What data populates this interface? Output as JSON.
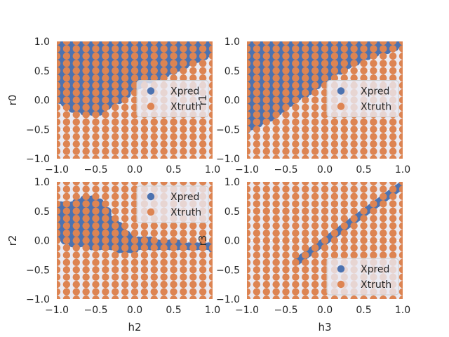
{
  "chart_data": [
    {
      "type": "scatter",
      "panel": "top-left",
      "xlabel": "",
      "ylabel": "r0",
      "xlim": [
        -1.0,
        1.0
      ],
      "ylim": [
        -1.0,
        1.0
      ],
      "xticks": [
        "−1.0",
        "−0.5",
        "0.0",
        "0.5",
        "1.0"
      ],
      "yticks": [
        "−1.0",
        "−0.5",
        "0.0",
        "0.5",
        "1.0"
      ],
      "grid": true,
      "legend": {
        "placement": "center-right",
        "entries": [
          "Xpred",
          "Xtruth"
        ]
      },
      "series": [
        {
          "name": "Xpred",
          "color": "#4c72b0",
          "region": {
            "kind": "above",
            "curve": [
              [
                -1.0,
                0.0
              ],
              [
                -0.8,
                -0.15
              ],
              [
                -0.6,
                -0.22
              ],
              [
                -0.45,
                -0.2
              ],
              [
                -0.3,
                -0.1
              ],
              [
                0.0,
                0.2
              ],
              [
                0.2,
                0.35
              ],
              [
                0.4,
                0.45
              ],
              [
                0.6,
                0.55
              ],
              [
                0.8,
                0.68
              ],
              [
                1.0,
                0.82
              ]
            ]
          }
        },
        {
          "name": "Xtruth",
          "color": "#dd8452",
          "grid_step": 0.125
        }
      ]
    },
    {
      "type": "scatter",
      "panel": "top-right",
      "xlabel": "",
      "ylabel": "r1",
      "xlim": [
        -1.0,
        1.0
      ],
      "ylim": [
        -1.0,
        1.0
      ],
      "xticks": [
        "−1.0",
        "−0.5",
        "0.0",
        "0.5",
        "1.0"
      ],
      "yticks": [
        "−1.0",
        "−0.5",
        "0.0",
        "0.5",
        "1.0"
      ],
      "grid": true,
      "legend": {
        "placement": "center-right",
        "entries": [
          "Xpred",
          "Xtruth"
        ]
      },
      "series": [
        {
          "name": "Xpred",
          "color": "#4c72b0",
          "region": {
            "kind": "above",
            "curve": [
              [
                -1.0,
                -0.5
              ],
              [
                -0.7,
                -0.3
              ],
              [
                -0.4,
                -0.05
              ],
              [
                -0.1,
                0.25
              ],
              [
                0.2,
                0.5
              ],
              [
                0.5,
                0.72
              ],
              [
                0.8,
                0.85
              ],
              [
                1.0,
                0.92
              ]
            ]
          }
        },
        {
          "name": "Xtruth",
          "color": "#dd8452",
          "grid_step": 0.125
        }
      ]
    },
    {
      "type": "scatter",
      "panel": "bottom-left",
      "xlabel": "h2",
      "ylabel": "r2",
      "xlim": [
        -1.0,
        1.0
      ],
      "ylim": [
        -1.0,
        1.0
      ],
      "xticks": [
        "−1.0",
        "−0.5",
        "0.0",
        "0.5",
        "1.0"
      ],
      "yticks": [
        "−1.0",
        "−0.5",
        "0.0",
        "0.5",
        "1.0"
      ],
      "grid": true,
      "legend": {
        "placement": "upper-right",
        "entries": [
          "Xpred",
          "Xtruth"
        ]
      },
      "series": [
        {
          "name": "Xpred",
          "color": "#4c72b0",
          "region": {
            "kind": "band",
            "upper": [
              [
                -1.0,
                0.6
              ],
              [
                -0.8,
                0.65
              ],
              [
                -0.6,
                0.75
              ],
              [
                -0.4,
                0.62
              ],
              [
                -0.3,
                0.4
              ],
              [
                -0.15,
                0.2
              ],
              [
                0.0,
                0.05
              ],
              [
                0.4,
                -0.03
              ],
              [
                0.7,
                -0.06
              ],
              [
                1.0,
                -0.08
              ]
            ],
            "lower": [
              [
                -1.0,
                0.02
              ],
              [
                -0.8,
                -0.05
              ],
              [
                -0.5,
                -0.12
              ],
              [
                -0.2,
                -0.15
              ],
              [
                0.0,
                -0.15
              ],
              [
                0.4,
                -0.14
              ],
              [
                0.7,
                -0.14
              ],
              [
                1.0,
                -0.15
              ]
            ]
          }
        },
        {
          "name": "Xtruth",
          "color": "#dd8452",
          "grid_step": 0.125
        }
      ]
    },
    {
      "type": "scatter",
      "panel": "bottom-right",
      "xlabel": "h3",
      "ylabel": "r3",
      "xlim": [
        -1.0,
        1.0
      ],
      "ylim": [
        -1.0,
        1.0
      ],
      "xticks": [
        "−1.0",
        "−0.5",
        "0.0",
        "0.5",
        "1.0"
      ],
      "yticks": [
        "−1.0",
        "−0.5",
        "0.0",
        "0.5",
        "1.0"
      ],
      "grid": true,
      "legend": {
        "placement": "lower-right",
        "entries": [
          "Xpred",
          "Xtruth"
        ]
      },
      "series": [
        {
          "name": "Xpred",
          "color": "#4c72b0",
          "region": {
            "kind": "line",
            "from": [
              -0.35,
              -0.35
            ],
            "to": [
              1.0,
              0.95
            ]
          }
        },
        {
          "name": "Xtruth",
          "color": "#dd8452",
          "grid_step": 0.125
        }
      ]
    }
  ]
}
